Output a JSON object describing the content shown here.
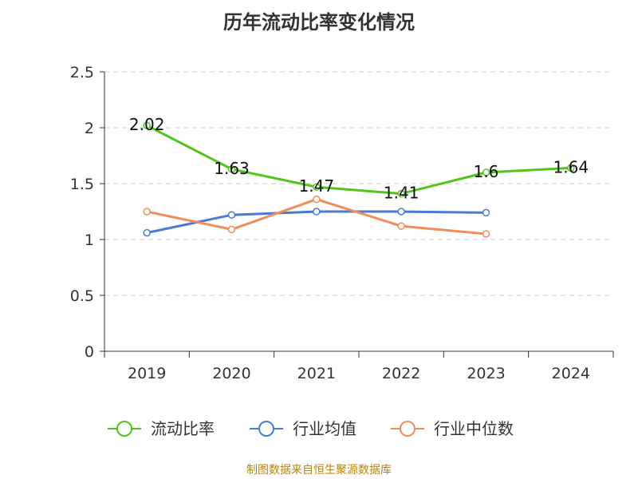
{
  "chart_data": {
    "type": "line",
    "title": "历年流动比率变化情况",
    "categories": [
      "2019",
      "2020",
      "2021",
      "2022",
      "2023",
      "2024"
    ],
    "ylim": [
      0,
      2.5
    ],
    "yticks": [
      "0",
      "0.5",
      "1",
      "1.5",
      "2",
      "2.5"
    ],
    "grid": true,
    "legend_position": "bottom",
    "series": [
      {
        "name": "流动比率",
        "color": "#52c41a",
        "values": [
          2.02,
          1.63,
          1.47,
          1.41,
          1.6,
          1.64
        ],
        "labels": [
          "2.02",
          "1.63",
          "1.47",
          "1.41",
          "1.6",
          "1.64"
        ]
      },
      {
        "name": "行业均值",
        "color": "#4a7bd0",
        "values": [
          1.06,
          1.22,
          1.25,
          1.25,
          1.24,
          null
        ]
      },
      {
        "name": "行业中位数",
        "color": "#f28c5a",
        "values": [
          1.25,
          1.09,
          1.36,
          1.12,
          1.05,
          null
        ]
      }
    ]
  },
  "source_note": "制图数据来自恒生聚源数据库"
}
